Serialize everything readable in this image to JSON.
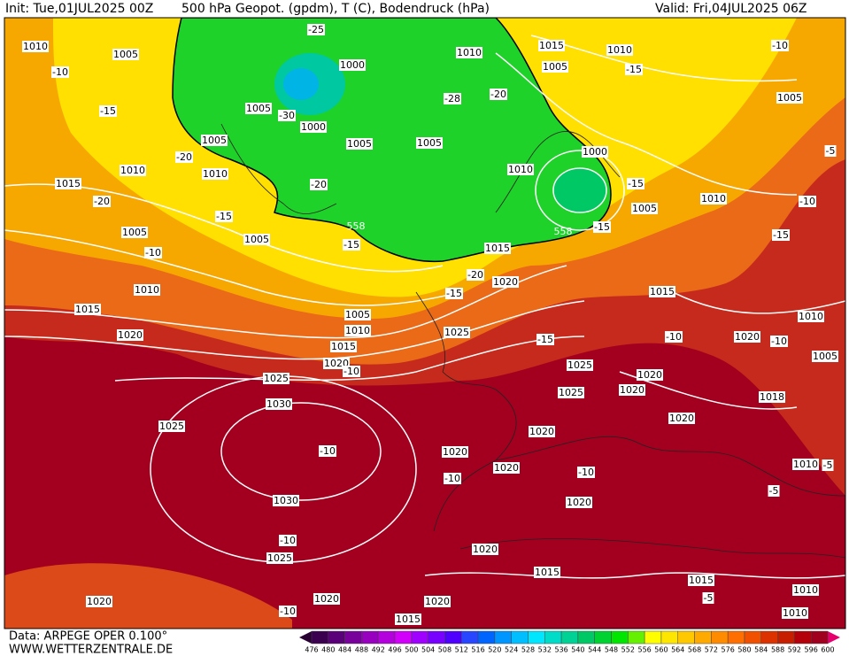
{
  "header": {
    "init": "Init: Tue,01JUL2025 00Z",
    "title": "500 hPa Geopot. (gpdm), T (C), Bodendruck (hPa)",
    "valid": "Valid: Fri,04JUL2025 06Z"
  },
  "footer": {
    "data": "Data: ARPEGE OPER 0.100°",
    "site": "WWW.WETTERZENTRALE.DE"
  },
  "map": {
    "pressure_labels": [
      1010,
      1005,
      1010,
      1015,
      1010,
      1005,
      1005,
      1000,
      1005,
      1000,
      1005,
      1005,
      1005,
      1010,
      1015,
      1010,
      1010,
      1000,
      1005,
      1010,
      1005,
      1005,
      1015,
      1020,
      1010,
      1015,
      1015,
      1005,
      1010,
      1020,
      1015,
      1025,
      1020,
      1020,
      1010,
      1005,
      1025,
      1025,
      1020,
      1020,
      1025,
      1030,
      1018,
      1020,
      1025,
      1020,
      1020,
      1020,
      1010,
      1020,
      1030,
      1025,
      1020,
      1015,
      1015,
      1010,
      1020,
      1020,
      1020,
      1015,
      1010
    ],
    "temperature_labels": [
      -25,
      -10,
      -15,
      -30,
      -20,
      -20,
      -15,
      -10,
      -28,
      -20,
      -20,
      -15,
      -20,
      -15,
      -15,
      -10,
      -10,
      -10,
      -10,
      -10,
      -10,
      -10,
      -5,
      -5,
      -15,
      -15,
      -10,
      -10,
      -15,
      -5,
      -10,
      -5,
      -15
    ],
    "geopotential_labels": [
      558,
      558
    ]
  },
  "colorbar": {
    "labels": [
      476,
      480,
      484,
      488,
      492,
      496,
      500,
      504,
      508,
      512,
      516,
      520,
      524,
      528,
      532,
      536,
      540,
      544,
      548,
      552,
      556,
      560,
      564,
      568,
      572,
      576,
      580,
      584,
      588,
      592,
      596,
      600
    ],
    "colors": [
      "#3c0050",
      "#5a0078",
      "#78009b",
      "#9600be",
      "#b400dc",
      "#d200fa",
      "#a000ff",
      "#7800ff",
      "#5000ff",
      "#2846ff",
      "#0064ff",
      "#0096ff",
      "#00beff",
      "#00e6ff",
      "#00dcc8",
      "#00d296",
      "#00c864",
      "#00d232",
      "#00e600",
      "#64f000",
      "#ffff00",
      "#ffe600",
      "#ffc800",
      "#ffaa00",
      "#ff8c00",
      "#ff6e00",
      "#f05000",
      "#dc3200",
      "#c81e00",
      "#b4000a",
      "#a0001e"
    ]
  }
}
